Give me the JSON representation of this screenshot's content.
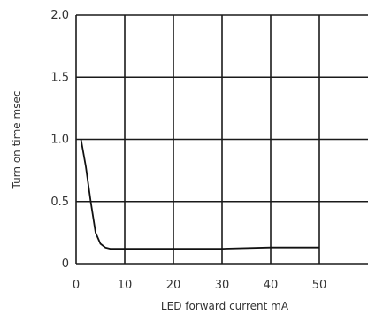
{
  "chart_data": {
    "type": "line",
    "title": "",
    "xlabel": "LED forward current mA",
    "ylabel": "Turn on time msec",
    "xlim": [
      0,
      60
    ],
    "ylim": [
      0,
      2.0
    ],
    "x_ticks": [
      "0",
      "10",
      "20",
      "30",
      "40",
      "50"
    ],
    "y_ticks": [
      "0",
      "0.5",
      "1.0",
      "1.5",
      "2.0"
    ],
    "grid": true,
    "series": [
      {
        "x": [
          1,
          2,
          3,
          4,
          5,
          6,
          7,
          10,
          20,
          30,
          40,
          50
        ],
        "values": [
          1.0,
          0.78,
          0.5,
          0.25,
          0.16,
          0.13,
          0.12,
          0.12,
          0.12,
          0.12,
          0.13,
          0.13
        ]
      }
    ]
  }
}
